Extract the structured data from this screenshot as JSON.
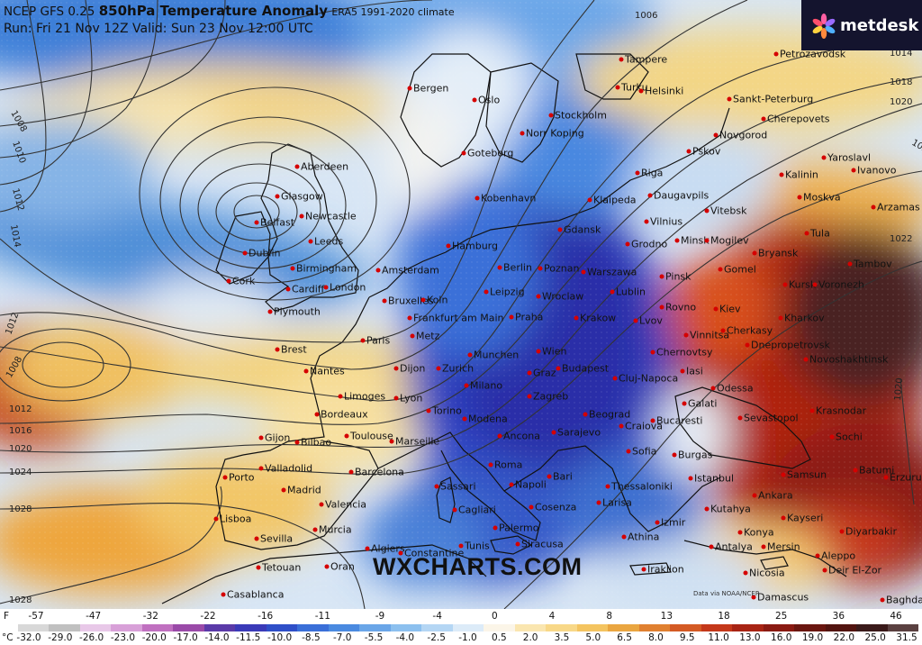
{
  "header": {
    "model": "NCEP GFS 0.25",
    "variable": "850hPa Temperature Anomaly",
    "climate": "ERA5 1991-2020 climate",
    "run_line": "Run: Fri 21 Nov 12Z Valid: Sun 23 Nov 12:00 UTC"
  },
  "brand": {
    "logo_text": "metdesk",
    "logo_icon": "metdesk-flower-icon",
    "bg_color": "#14142e"
  },
  "watermark": "WXCHARTS.COM",
  "credit": "Data via NOAA/NCEP",
  "colors": {
    "sea_blue": "#5a8fd8",
    "cold_deep": "#2f2fb0",
    "warm_yellow": "#f5d070",
    "warm_red": "#b01c0c",
    "dark_red": "#4a1410",
    "isobar": "#333333"
  },
  "cities": [
    {
      "name": "Tampere"
    },
    {
      "name": "Petrozavodsk"
    },
    {
      "name": "Bergen"
    },
    {
      "name": "Oslo"
    },
    {
      "name": "Turku"
    },
    {
      "name": "Helsinki"
    },
    {
      "name": "Sankt-Peterburg"
    },
    {
      "name": "Stockholm"
    },
    {
      "name": "Norr Koping"
    },
    {
      "name": "Cherepovets"
    },
    {
      "name": "Novgorod"
    },
    {
      "name": "Pskov"
    },
    {
      "name": "Yaroslavl"
    },
    {
      "name": "Ivanovo"
    },
    {
      "name": "Aberdeen"
    },
    {
      "name": "Goteborg"
    },
    {
      "name": "Kalinin"
    },
    {
      "name": "Riga"
    },
    {
      "name": "Moskva"
    },
    {
      "name": "Arzamas"
    },
    {
      "name": "Glasgow"
    },
    {
      "name": "Newcastle"
    },
    {
      "name": "Kobenhavn"
    },
    {
      "name": "Klaipeda"
    },
    {
      "name": "Daugavpils"
    },
    {
      "name": "Belfast"
    },
    {
      "name": "Vitebsk"
    },
    {
      "name": "Vilnius"
    },
    {
      "name": "Leeds"
    },
    {
      "name": "Gdansk"
    },
    {
      "name": "Hamburg"
    },
    {
      "name": "Grodno"
    },
    {
      "name": "Minsk"
    },
    {
      "name": "Mogilev"
    },
    {
      "name": "Tula"
    },
    {
      "name": "Dublin"
    },
    {
      "name": "Bryansk"
    },
    {
      "name": "Birmingham"
    },
    {
      "name": "Amsterdam"
    },
    {
      "name": "Berlin"
    },
    {
      "name": "Poznan"
    },
    {
      "name": "Warszawa"
    },
    {
      "name": "Pinsk"
    },
    {
      "name": "Gomel"
    },
    {
      "name": "Tambov"
    },
    {
      "name": "Cork"
    },
    {
      "name": "Cardiff"
    },
    {
      "name": "London"
    },
    {
      "name": "Bruxelles"
    },
    {
      "name": "Koln"
    },
    {
      "name": "Kursk"
    },
    {
      "name": "Voronezh"
    },
    {
      "name": "Plymouth"
    },
    {
      "name": "Leipzig"
    },
    {
      "name": "Wroclaw"
    },
    {
      "name": "Lublin"
    },
    {
      "name": "Rovno"
    },
    {
      "name": "Kiev"
    },
    {
      "name": "Frankfurt am Main"
    },
    {
      "name": "Praha"
    },
    {
      "name": "Krakow"
    },
    {
      "name": "Lvov"
    },
    {
      "name": "Kharkov"
    },
    {
      "name": "Paris"
    },
    {
      "name": "Metz"
    },
    {
      "name": "Vinnitsa"
    },
    {
      "name": "Cherkasy"
    },
    {
      "name": "Brest"
    },
    {
      "name": "Munchen"
    },
    {
      "name": "Wien"
    },
    {
      "name": "Chernovtsy"
    },
    {
      "name": "Dnepropetrovsk"
    },
    {
      "name": "Novoshakhtinsk"
    },
    {
      "name": "Nantes"
    },
    {
      "name": "Dijon"
    },
    {
      "name": "Zurich"
    },
    {
      "name": "Graz"
    },
    {
      "name": "Budapest"
    },
    {
      "name": "Cluj-Napoca"
    },
    {
      "name": "Iasi"
    },
    {
      "name": "Odessa"
    },
    {
      "name": "Limoges"
    },
    {
      "name": "Lyon"
    },
    {
      "name": "Milano"
    },
    {
      "name": "Zagreb"
    },
    {
      "name": "Galati"
    },
    {
      "name": "Sevastopol"
    },
    {
      "name": "Krasnodar"
    },
    {
      "name": "Bordeaux"
    },
    {
      "name": "Torino"
    },
    {
      "name": "Modena"
    },
    {
      "name": "Beograd"
    },
    {
      "name": "Craiova"
    },
    {
      "name": "Bucaresti"
    },
    {
      "name": "Toulouse"
    },
    {
      "name": "Ancona"
    },
    {
      "name": "Sarajevo"
    },
    {
      "name": "Gijon"
    },
    {
      "name": "Bilbao"
    },
    {
      "name": "Marseille"
    },
    {
      "name": "Sofia"
    },
    {
      "name": "Burgas"
    },
    {
      "name": "Sochi"
    },
    {
      "name": "Porto"
    },
    {
      "name": "Valladolid"
    },
    {
      "name": "Barcelona"
    },
    {
      "name": "Roma"
    },
    {
      "name": "Bari"
    },
    {
      "name": "Istanbul"
    },
    {
      "name": "Samsun"
    },
    {
      "name": "Batumi"
    },
    {
      "name": "Erzurum"
    },
    {
      "name": "Madrid"
    },
    {
      "name": "Sassari"
    },
    {
      "name": "Napoli"
    },
    {
      "name": "Thessaloniki"
    },
    {
      "name": "Ankara"
    },
    {
      "name": "Valencia"
    },
    {
      "name": "Cagliari"
    },
    {
      "name": "Cosenza"
    },
    {
      "name": "Larisa"
    },
    {
      "name": "Kutahya"
    },
    {
      "name": "Kayseri"
    },
    {
      "name": "Lisboa"
    },
    {
      "name": "Murcia"
    },
    {
      "name": "Palermo"
    },
    {
      "name": "Izmir"
    },
    {
      "name": "Konya"
    },
    {
      "name": "Diyarbakir"
    },
    {
      "name": "Sevilla"
    },
    {
      "name": "Siracusa"
    },
    {
      "name": "Athina"
    },
    {
      "name": "Antalya"
    },
    {
      "name": "Mersin"
    },
    {
      "name": "Aleppo"
    },
    {
      "name": "Algiers"
    },
    {
      "name": "Constantine"
    },
    {
      "name": "Tunis"
    },
    {
      "name": "Tetouan"
    },
    {
      "name": "Oran"
    },
    {
      "name": "Iraklion"
    },
    {
      "name": "Nicosia"
    },
    {
      "name": "Deir El-Zor"
    },
    {
      "name": "Casablanca"
    },
    {
      "name": "Damascus"
    },
    {
      "name": "Baghdad"
    }
  ],
  "isobars": [
    "1006",
    "1008",
    "1010",
    "1012",
    "1014",
    "1016",
    "1018",
    "1020",
    "1022",
    "1024",
    "1026",
    "1028"
  ],
  "legend": {
    "unit_f": "F",
    "unit_c": "°C",
    "f_ticks": [
      "-57",
      "-47",
      "-32",
      "-22",
      "-16",
      "-11",
      "-9",
      "-4",
      "0",
      "4",
      "8",
      "13",
      "18",
      "25",
      "36",
      "46"
    ],
    "c_ticks": [
      "-32.0",
      "-29.0",
      "-26.0",
      "-23.0",
      "-20.0",
      "-17.0",
      "-14.0",
      "-11.5",
      "-10.0",
      "-8.5",
      "-7.0",
      "-5.5",
      "-4.0",
      "-2.5",
      "-1.0",
      "0.5",
      "2.0",
      "3.5",
      "5.0",
      "6.5",
      "8.0",
      "9.5",
      "11.0",
      "13.0",
      "16.0",
      "19.0",
      "22.0",
      "25.0",
      "31.5"
    ],
    "colors": [
      "#d8d8d8",
      "#c0c0c0",
      "#e8c8e8",
      "#d8a0d8",
      "#c070c0",
      "#9a4aa8",
      "#5a3aa8",
      "#3a3ab8",
      "#2f4fc8",
      "#3a6fd8",
      "#4a8ae0",
      "#6aa6e8",
      "#8cc0ef",
      "#b4d6f4",
      "#dcebf8",
      "#fbf5e8",
      "#fae6b0",
      "#f8d888",
      "#f4c460",
      "#eaa640",
      "#e08030",
      "#d45a24",
      "#c4381a",
      "#a82414",
      "#8a1a12",
      "#6a1610",
      "#521410",
      "#3a1a1a",
      "#5a4040"
    ]
  }
}
